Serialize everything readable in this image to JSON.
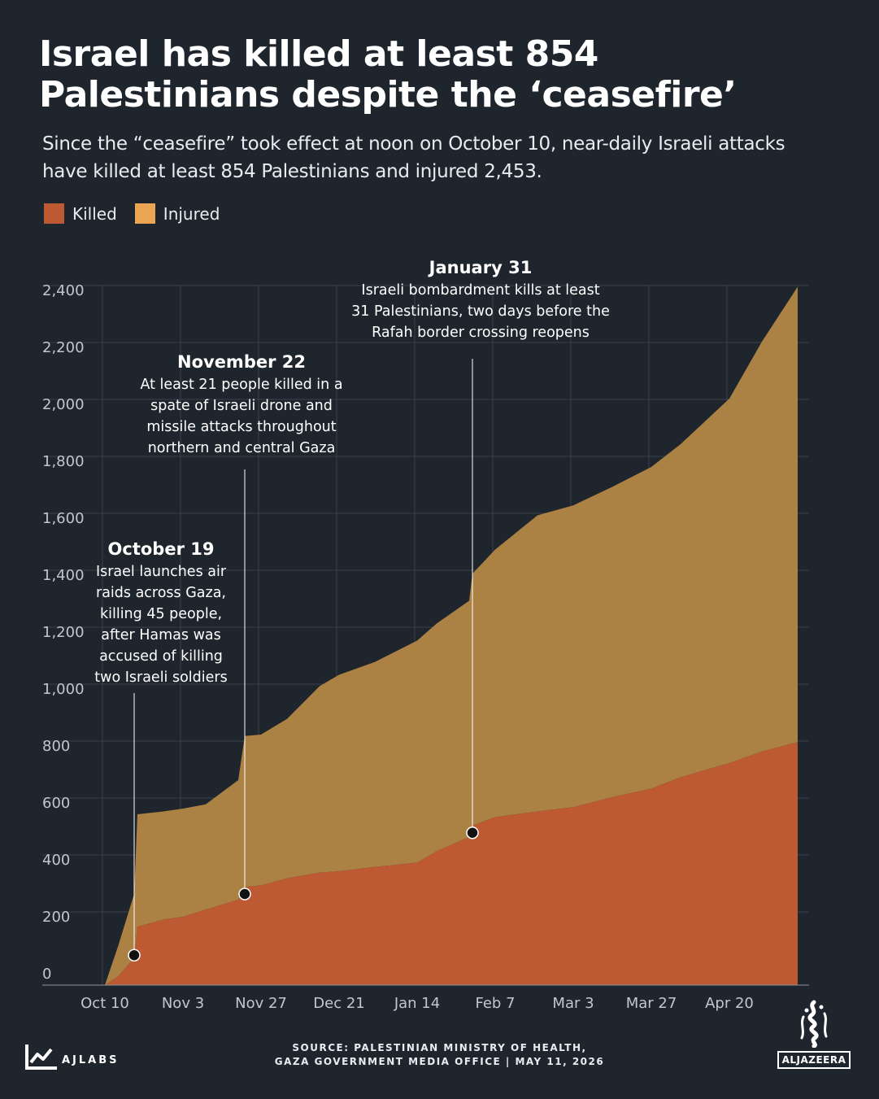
{
  "title_lines": [
    "Israel has killed at least 854",
    "Palestinians despite the ‘ceasefire’"
  ],
  "subtitle_lines": [
    "Since the “ceasefire” took effect at noon on October 10, near-daily Israeli attacks",
    "have killed at least 854 Palestinians and injured 2,453."
  ],
  "legend": [
    {
      "label": "Killed",
      "color": "#bd5a34"
    },
    {
      "label": "Injured",
      "color": "#eaa652"
    }
  ],
  "chart_data": {
    "type": "area",
    "stacked": true,
    "x_tick_labels": [
      "Oct 10",
      "Nov 3",
      "Nov 27",
      "Dec 21",
      "Jan 14",
      "Feb 7",
      "Mar 3",
      "Mar 27",
      "Apr 20"
    ],
    "y_tick_labels": [
      "0",
      "200",
      "400",
      "600",
      "800",
      "1,000",
      "1,200",
      "1,400",
      "1,600",
      "1,800",
      "2,000",
      "2,200",
      "2,400"
    ],
    "ylim": [
      0,
      2450
    ],
    "grid": true,
    "legend_placement": "top-left",
    "series": [
      {
        "name": "Killed",
        "color": "#bd5a34",
        "x": [
          "Oct 10",
          "Oct 14",
          "Oct 19",
          "Oct 20",
          "Oct 28",
          "Nov 3",
          "Nov 10",
          "Nov 20",
          "Nov 22",
          "Nov 27",
          "Dec 5",
          "Dec 15",
          "Dec 21",
          "Jan 1",
          "Jan 14",
          "Jan 20",
          "Jan 30",
          "Jan 31",
          "Feb 7",
          "Feb 20",
          "Mar 3",
          "Mar 15",
          "Mar 27",
          "Apr 5",
          "Apr 20",
          "Apr 30",
          "May 11"
        ],
        "values": [
          0,
          30,
          95,
          205,
          230,
          240,
          265,
          300,
          345,
          350,
          375,
          395,
          400,
          415,
          430,
          470,
          520,
          560,
          590,
          610,
          625,
          660,
          690,
          730,
          780,
          820,
          854
        ]
      },
      {
        "name": "Injured",
        "color": "#eaa652",
        "x": [
          "Oct 10",
          "Oct 14",
          "Oct 19",
          "Oct 20",
          "Oct 28",
          "Nov 3",
          "Nov 10",
          "Nov 20",
          "Nov 22",
          "Nov 27",
          "Dec 5",
          "Dec 15",
          "Dec 21",
          "Jan 1",
          "Jan 14",
          "Jan 20",
          "Jan 30",
          "Jan 31",
          "Feb 7",
          "Feb 20",
          "Mar 3",
          "Mar 15",
          "Mar 27",
          "Apr 5",
          "Apr 20",
          "Apr 30",
          "May 11"
        ],
        "values": [
          0,
          105,
          225,
          395,
          380,
          380,
          370,
          420,
          530,
          530,
          560,
          655,
          690,
          720,
          780,
          800,
          830,
          885,
          940,
          1040,
          1060,
          1090,
          1130,
          1170,
          1280,
          1440,
          1599
        ]
      }
    ],
    "annotations": [
      {
        "date": "Oct 19",
        "value": 105,
        "title": "October 19",
        "lines": [
          "Israel launches air",
          "raids across Gaza,",
          "killing 45 people,",
          "after Hamas was",
          "accused of killing",
          "two Israeli soldiers"
        ]
      },
      {
        "date": "Nov 22",
        "value": 320,
        "title": "November 22",
        "lines": [
          "At least 21 people killed in a",
          "spate of Israeli drone and",
          "missile attacks throughout",
          "northern and central Gaza"
        ]
      },
      {
        "date": "Jan 31",
        "value": 535,
        "title": "January 31",
        "lines": [
          "Israeli bombardment kills at least",
          "31 Palestinians, two days before the",
          "Rafah border crossing reopens"
        ]
      }
    ]
  },
  "footer": {
    "source_line1": "SOURCE:  PALESTINIAN MINISTRY OF HEALTH,",
    "source_line2": "GAZA GOVERNMENT MEDIA OFFICE  |   MAY 11, 2026",
    "ajlabs": "AJLABS",
    "aljazeera": "ALJAZEERA"
  }
}
